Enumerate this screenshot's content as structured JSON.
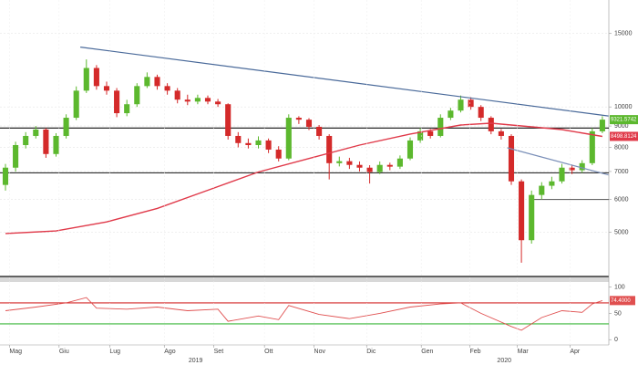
{
  "chart_data": [
    {
      "type": "candlestick",
      "log_scale": true,
      "grid": true,
      "xlim": [
        -0.54,
        59.64
      ],
      "ylim": [
        3920,
        18050
      ],
      "yticks": [
        5000,
        6000,
        7000,
        8000,
        9000,
        10000,
        15000
      ],
      "up_color": "#5cb82e",
      "down_color": "#d42a2a",
      "open": [
        6500,
        7150,
        8100,
        8520,
        8825,
        7710,
        8520,
        9420,
        10940,
        12400,
        11220,
        10940,
        9660,
        10150,
        11220,
        11800,
        11220,
        10940,
        10410,
        10300,
        10510,
        10300,
        10150,
        8520,
        8190,
        8100,
        8310,
        7900,
        7520,
        9420,
        9320,
        8960,
        8520,
        7330,
        7410,
        7260,
        7150,
        6980,
        7260,
        7190,
        7520,
        8310,
        8740,
        8520,
        9420,
        9800,
        10410,
        10000,
        9420,
        8740,
        8520,
        6630,
        4790,
        6150,
        6470,
        6630,
        7150,
        7050,
        7330,
        8740
      ],
      "high": [
        7300,
        8250,
        8700,
        9000,
        8900,
        8650,
        9600,
        11200,
        13000,
        12600,
        11500,
        11100,
        10400,
        11400,
        12100,
        11950,
        11400,
        11100,
        10700,
        10700,
        10650,
        10450,
        10200,
        8700,
        8400,
        8500,
        8400,
        8050,
        9600,
        9500,
        9400,
        9050,
        8600,
        7600,
        7550,
        7400,
        7250,
        7400,
        7350,
        7650,
        8450,
        8900,
        8850,
        9600,
        9950,
        10650,
        10550,
        10100,
        9500,
        8850,
        8600,
        6700,
        6300,
        6600,
        6800,
        7300,
        7250,
        7450,
        8900,
        9500
      ],
      "low": [
        6300,
        7000,
        7950,
        8400,
        7550,
        7600,
        8400,
        9300,
        10800,
        11000,
        10700,
        9450,
        9500,
        10000,
        11100,
        11000,
        10700,
        10200,
        10100,
        10150,
        10150,
        10000,
        8350,
        8000,
        7950,
        7950,
        7750,
        7400,
        7450,
        9100,
        8800,
        8350,
        6700,
        7200,
        7100,
        7000,
        6550,
        6900,
        7050,
        7100,
        7450,
        8200,
        8400,
        8450,
        9300,
        9700,
        9850,
        9250,
        8600,
        8350,
        6500,
        4230,
        4700,
        6000,
        6350,
        6550,
        6900,
        6950,
        7250,
        8650
      ],
      "close": [
        7150,
        8100,
        8520,
        8825,
        7710,
        8520,
        9420,
        10940,
        12400,
        11220,
        10940,
        9660,
        10150,
        11220,
        11800,
        11220,
        10940,
        10410,
        10300,
        10510,
        10300,
        10150,
        8520,
        8190,
        8100,
        8310,
        7900,
        7520,
        9420,
        9320,
        8960,
        8520,
        7330,
        7410,
        7260,
        7150,
        6980,
        7260,
        7190,
        7520,
        8310,
        8740,
        8520,
        9420,
        9800,
        10410,
        10000,
        9420,
        8740,
        8520,
        6630,
        4790,
        6150,
        6470,
        6630,
        7150,
        7050,
        7330,
        8740,
        9321.5742
      ],
      "ma": {
        "color": "#e03a4a",
        "x": [
          0,
          5,
          10,
          15,
          20,
          25,
          30,
          35,
          40,
          45,
          48,
          52,
          55,
          59
        ],
        "values": [
          4970,
          5040,
          5300,
          5710,
          6310,
          6980,
          7520,
          8100,
          8610,
          9050,
          9140,
          8960,
          8825,
          8498.8124
        ]
      },
      "trendlines": [
        {
          "color": "#4a6a9a",
          "x": [
            7.4,
            59.6
          ],
          "values": [
            13920,
            9510
          ]
        },
        {
          "color": "#7a8fb8",
          "x": [
            49.6,
            59.6
          ],
          "values": [
            7980,
            6870
          ]
        }
      ],
      "hlines": [
        {
          "value": 8900,
          "color": "#111"
        },
        {
          "value": 6950,
          "color": "#111"
        },
        {
          "value": 6000,
          "from": 51.8,
          "color": "#666"
        }
      ]
    },
    {
      "type": "line",
      "xlim": [
        -0.54,
        59.64
      ],
      "ylim": [
        -10,
        108
      ],
      "yticks": [
        0,
        50,
        100
      ],
      "xticks": [
        {
          "value": 0.4,
          "label": "Mag"
        },
        {
          "value": 5.3,
          "label": "Giu"
        },
        {
          "value": 10.3,
          "label": "Lug"
        },
        {
          "value": 15.7,
          "label": "Ago"
        },
        {
          "value": 20.6,
          "label": "Set"
        },
        {
          "value": 25.6,
          "label": "Ott"
        },
        {
          "value": 30.5,
          "label": "Nov"
        },
        {
          "value": 35.7,
          "label": "Dic"
        },
        {
          "value": 41.1,
          "label": "Gen"
        },
        {
          "value": 45.9,
          "label": "Feb"
        },
        {
          "value": 50.6,
          "label": "Mar"
        },
        {
          "value": 55.8,
          "label": "Apr"
        }
      ],
      "year_ticks": [
        {
          "value": 18.8,
          "label": "2019"
        },
        {
          "value": 49.3,
          "label": "2020"
        }
      ],
      "color": "#e05050",
      "x": [
        0,
        3,
        6,
        8,
        9,
        12,
        15,
        18,
        21,
        22,
        25,
        27,
        28,
        31,
        34,
        37,
        40,
        43,
        45,
        47,
        50,
        51,
        53,
        55,
        57,
        58,
        59
      ],
      "values": [
        55,
        62,
        70,
        80,
        60,
        58,
        62,
        55,
        58,
        35,
        45,
        38,
        65,
        48,
        40,
        50,
        62,
        68,
        70,
        50,
        25,
        18,
        42,
        55,
        52,
        68,
        74.4
      ],
      "value_labels": [
        null,
        null,
        null,
        null,
        null,
        null,
        null,
        null,
        null,
        null,
        null,
        null,
        null,
        null,
        null,
        null,
        null,
        null,
        null,
        null,
        null,
        null,
        null,
        null,
        null,
        null,
        "74.4000"
      ],
      "hlines": [
        {
          "value": 70,
          "color": "#d42a2a"
        },
        {
          "value": 30,
          "color": "#3cb83c"
        }
      ]
    }
  ]
}
